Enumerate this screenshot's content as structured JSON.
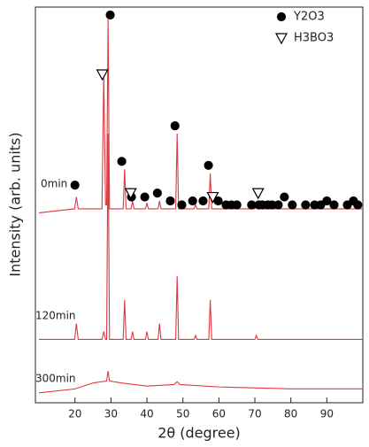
{
  "chart_data": {
    "type": "line",
    "x_label": "2θ (degree)",
    "y_label": "Intensity (arb. units)",
    "xlim": [
      9,
      100
    ],
    "ylim": [
      0,
      100
    ],
    "xticks": [
      20,
      30,
      40,
      50,
      60,
      70,
      80,
      90
    ],
    "series": [
      {
        "name": "0min",
        "color": "#e0383f",
        "x": [
          10,
          19.9,
          20.4,
          20.9,
          27.5,
          28.0,
          28.5,
          28.8,
          29.2,
          29.6,
          33.4,
          33.8,
          34.2,
          35.6,
          36.0,
          36.4,
          39.6,
          40.0,
          40.4,
          43.1,
          43.5,
          43.9,
          48.0,
          48.4,
          48.8,
          53.1,
          53.5,
          53.9,
          57.2,
          57.6,
          58.0,
          70.0,
          70.4,
          70.8,
          100
        ],
        "values": [
          48,
          49,
          52,
          49,
          49,
          83,
          50,
          50,
          97,
          49,
          49,
          59,
          49,
          49,
          51,
          49,
          49,
          50.5,
          49,
          49,
          51,
          49,
          49,
          68,
          49,
          49,
          50,
          49,
          49,
          58,
          49,
          49,
          50,
          49,
          49
        ]
      },
      {
        "name": "120min",
        "color": "#e0383f",
        "x": [
          10,
          19.9,
          20.4,
          20.9,
          27.5,
          28.0,
          28.5,
          28.8,
          29.2,
          29.6,
          33.4,
          33.8,
          34.2,
          35.6,
          36.0,
          36.4,
          39.6,
          40.0,
          40.4,
          43.1,
          43.5,
          43.9,
          48.0,
          48.4,
          48.8,
          53.1,
          53.5,
          53.9,
          57.2,
          57.6,
          58.0,
          70.0,
          70.4,
          70.8,
          100
        ],
        "values": [
          16,
          16,
          20,
          16,
          16,
          18,
          16,
          16,
          68,
          16,
          16,
          26,
          16,
          16,
          18,
          16,
          16,
          18,
          16,
          16,
          20,
          16,
          16,
          32,
          16,
          16,
          17,
          16,
          16,
          26,
          16,
          16,
          17,
          16,
          16
        ]
      },
      {
        "name": "300min",
        "color": "#e0383f",
        "x": [
          10,
          20,
          25,
          28.8,
          29.2,
          29.6,
          33,
          40,
          47.5,
          48.4,
          49.2,
          60,
          80,
          100
        ],
        "values": [
          2.5,
          3.5,
          5,
          5.5,
          8,
          5.5,
          5,
          4.2,
          4.6,
          5.3,
          4.6,
          4,
          3.5,
          3.5
        ]
      }
    ],
    "markers": [
      {
        "name": "Y2O3",
        "marker": "circle",
        "color": "#000000",
        "x": [
          20.0,
          29.8,
          33.0,
          35.7,
          39.4,
          42.9,
          46.5,
          47.8,
          49.7,
          52.7,
          55.6,
          57.1,
          59.8,
          62.0,
          63.5,
          65.0,
          69.1,
          71.1,
          72.1,
          73.6,
          74.8,
          76.5,
          78.2,
          80.4,
          84.1,
          86.6,
          88.3,
          90.0,
          92.0,
          95.7,
          97.4,
          98.6
        ],
        "values": [
          55,
          98,
          61,
          52,
          52,
          53,
          51,
          70,
          50,
          51,
          51,
          60,
          51,
          50,
          50,
          50,
          50,
          50,
          50,
          50,
          50,
          50,
          52,
          50,
          50,
          50,
          50,
          51,
          50,
          50,
          51,
          50
        ]
      },
      {
        "name": "H3BO3",
        "marker": "triangle",
        "color": "#000000",
        "x": [
          27.6,
          35.5,
          58.3,
          70.9
        ],
        "values": [
          83,
          53,
          52,
          53
        ]
      }
    ]
  }
}
